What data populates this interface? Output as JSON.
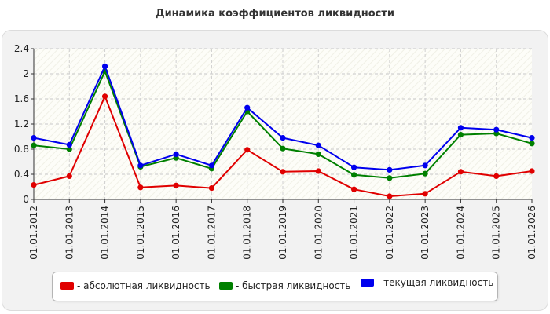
{
  "chart_data": {
    "type": "line",
    "title": "Динамика коэффициентов ликвидности",
    "xlabel": "",
    "ylabel": "",
    "ylim": [
      0,
      2.4
    ],
    "yticks": [
      "0",
      "0.4",
      "0.8",
      "1.2",
      "1.6",
      "2",
      "2.4"
    ],
    "grid": true,
    "legend_position": "bottom",
    "categories": [
      "01.01.2012",
      "01.01.2013",
      "01.01.2014",
      "01.01.2015",
      "01.01.2016",
      "01.01.2017",
      "01.01.2018",
      "01.01.2019",
      "01.01.2020",
      "01.01.2021",
      "01.01.2022",
      "01.01.2023",
      "01.01.2024",
      "01.01.2025",
      "01.01.2026"
    ],
    "series": [
      {
        "name": "- абсолютная ликвидность",
        "color": "#e00000",
        "values": [
          0.23,
          0.37,
          1.64,
          0.19,
          0.22,
          0.18,
          0.79,
          0.44,
          0.45,
          0.16,
          0.05,
          0.09,
          0.44,
          0.37,
          0.45
        ]
      },
      {
        "name": "- быстрая ликвидность",
        "color": "#008000",
        "values": [
          0.86,
          0.8,
          2.04,
          0.52,
          0.66,
          0.49,
          1.4,
          0.81,
          0.72,
          0.39,
          0.34,
          0.41,
          1.03,
          1.05,
          0.89
        ]
      },
      {
        "name": "- текущая ликвидность",
        "color": "#0000ee",
        "values": [
          0.98,
          0.87,
          2.12,
          0.54,
          0.72,
          0.54,
          1.46,
          0.98,
          0.86,
          0.51,
          0.47,
          0.54,
          1.14,
          1.11,
          0.98
        ]
      }
    ]
  }
}
